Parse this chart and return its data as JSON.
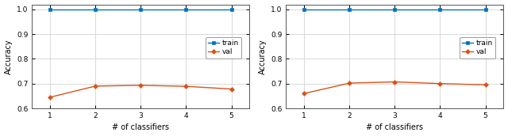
{
  "x": [
    1,
    2,
    3,
    4,
    5
  ],
  "plot1": {
    "train": [
      1.0,
      1.0,
      1.0,
      1.0,
      1.0
    ],
    "val": [
      0.645,
      0.69,
      0.693,
      0.689,
      0.678
    ]
  },
  "plot2": {
    "train": [
      1.0,
      1.0,
      1.0,
      1.0,
      1.0
    ],
    "val": [
      0.66,
      0.702,
      0.707,
      0.7,
      0.695
    ]
  },
  "train_color": "#0072BD",
  "val_color": "#D95319",
  "ylabel": "Accuracy",
  "xlabel": "# of classifiers",
  "ylim": [
    0.6,
    1.02
  ],
  "yticks": [
    0.6,
    0.7,
    0.8,
    0.9,
    1.0
  ],
  "xticks": [
    1,
    2,
    3,
    4,
    5
  ],
  "legend_labels": [
    "train",
    "val"
  ],
  "bg_color": "#FFFFFF",
  "grid_color": "#D3D3D3",
  "fontsize": 7.0,
  "tick_fontsize": 6.5
}
